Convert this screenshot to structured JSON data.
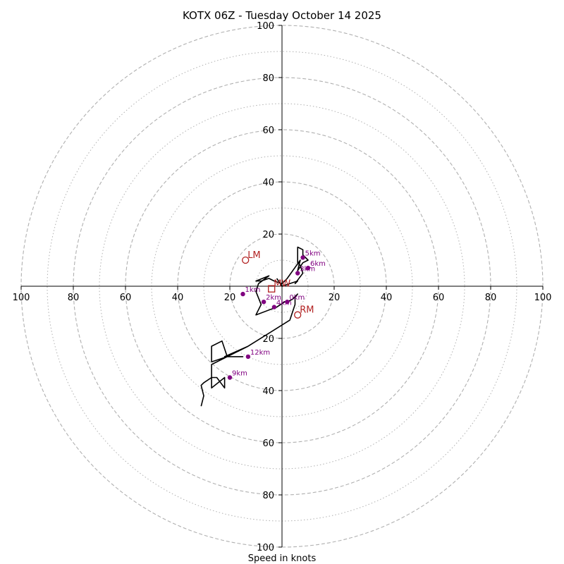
{
  "chart_data": {
    "type": "hodograph",
    "title": "KOTX 06Z - Tuesday October 14 2025",
    "xlabel": "Speed in knots",
    "axis_range": [
      -100,
      100
    ],
    "ring_major": [
      20,
      40,
      60,
      80,
      100
    ],
    "ring_minor": [
      10,
      30,
      50,
      70,
      90
    ],
    "tick_values": [
      100,
      80,
      60,
      40,
      20
    ],
    "hodograph_trace": [
      [
        -2,
        3
      ],
      [
        0,
        0
      ],
      [
        3,
        1
      ],
      [
        6,
        2
      ],
      [
        5,
        1
      ],
      [
        8,
        5
      ],
      [
        7,
        8
      ],
      [
        6,
        9
      ],
      [
        6,
        15
      ],
      [
        8,
        14
      ],
      [
        8,
        12
      ],
      [
        10,
        10
      ],
      [
        8,
        9
      ],
      [
        6,
        6
      ],
      [
        7,
        10
      ],
      [
        2,
        3
      ],
      [
        0,
        1
      ],
      [
        -3,
        2
      ],
      [
        -5,
        3
      ],
      [
        -8,
        2
      ],
      [
        -10,
        2
      ],
      [
        -5,
        4
      ],
      [
        -9,
        1
      ],
      [
        -10,
        -2
      ],
      [
        -8,
        -7
      ],
      [
        -10,
        -11
      ],
      [
        -2,
        -8
      ],
      [
        1,
        -6
      ],
      [
        2,
        -6
      ],
      [
        4,
        -5
      ],
      [
        6,
        -3
      ],
      [
        5,
        -4
      ],
      [
        5,
        -7
      ],
      [
        3,
        -13
      ],
      [
        -13,
        -23
      ],
      [
        -22,
        -27
      ],
      [
        -15,
        -27
      ],
      [
        -21,
        -27
      ],
      [
        -23,
        -21
      ],
      [
        -27,
        -23
      ],
      [
        -27,
        -29
      ],
      [
        -21,
        -27
      ],
      [
        -13,
        -23
      ],
      [
        -27,
        -30
      ],
      [
        -27,
        -39
      ],
      [
        -22,
        -35
      ],
      [
        -22,
        -39
      ],
      [
        -25,
        -35
      ],
      [
        -27,
        -35
      ],
      [
        -30,
        -37
      ],
      [
        -31,
        -38
      ],
      [
        -30,
        -42
      ],
      [
        -31,
        -46
      ]
    ],
    "height_markers": [
      {
        "label": "0km",
        "u": 2,
        "v": -6
      },
      {
        "label": "1km",
        "u": -15,
        "v": -3
      },
      {
        "label": "2km",
        "u": -7,
        "v": -6
      },
      {
        "label": "3km",
        "u": 6,
        "v": 5
      },
      {
        "label": "4km",
        "u": -3,
        "v": -8
      },
      {
        "label": "5km",
        "u": 8,
        "v": 11
      },
      {
        "label": "6km",
        "u": 10,
        "v": 7
      },
      {
        "label": "9km",
        "u": -20,
        "v": -35
      },
      {
        "label": "12km",
        "u": -13,
        "v": -27
      }
    ],
    "storm_motion": {
      "LM": {
        "label": "LM",
        "u": -14,
        "v": 10
      },
      "RM": {
        "label": "RM",
        "u": 6,
        "v": -11
      },
      "MW": {
        "label": "MW",
        "u": -4,
        "v": -1
      }
    },
    "colors": {
      "trace": "#000000",
      "markers": "#800080",
      "storm_motion": "#b22222",
      "grid": "#b0b0b0"
    }
  }
}
